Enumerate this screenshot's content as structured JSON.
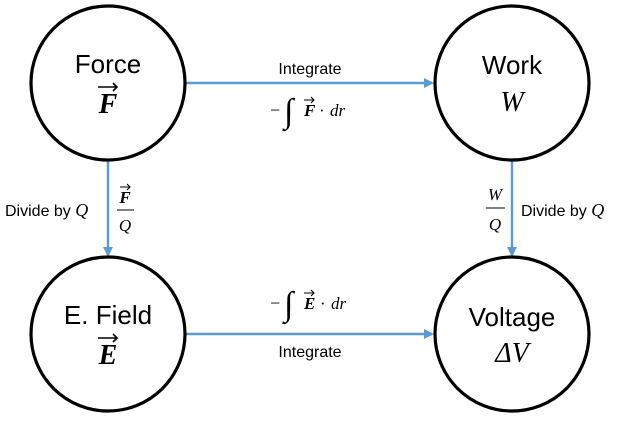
{
  "nodes": {
    "force": {
      "title": "Force",
      "symbol": "F"
    },
    "work": {
      "title": "Work",
      "symbol": "W"
    },
    "efield": {
      "title": "E. Field",
      "symbol": "E"
    },
    "voltage": {
      "title": "Voltage",
      "symbol": "ΔV"
    }
  },
  "edges": {
    "force_to_work": {
      "label": "Integrate",
      "math": {
        "minus": "−",
        "integral": "∫",
        "vector": "F",
        "dot": "·",
        "dr": "dr"
      }
    },
    "efield_to_voltage": {
      "label": "Integrate",
      "math": {
        "minus": "−",
        "integral": "∫",
        "vector": "E",
        "dot": "·",
        "dr": "dr"
      }
    },
    "force_to_efield": {
      "label_text": "Divide by ",
      "label_var": "Q",
      "fraction": {
        "numerator": "F",
        "denominator": "Q"
      }
    },
    "work_to_voltage": {
      "label_text": "Divide by ",
      "label_var": "Q",
      "fraction": {
        "numerator": "W",
        "denominator": "Q"
      }
    }
  },
  "colors": {
    "arrow": "#5b9bd5",
    "circle_stroke": "#000000"
  }
}
